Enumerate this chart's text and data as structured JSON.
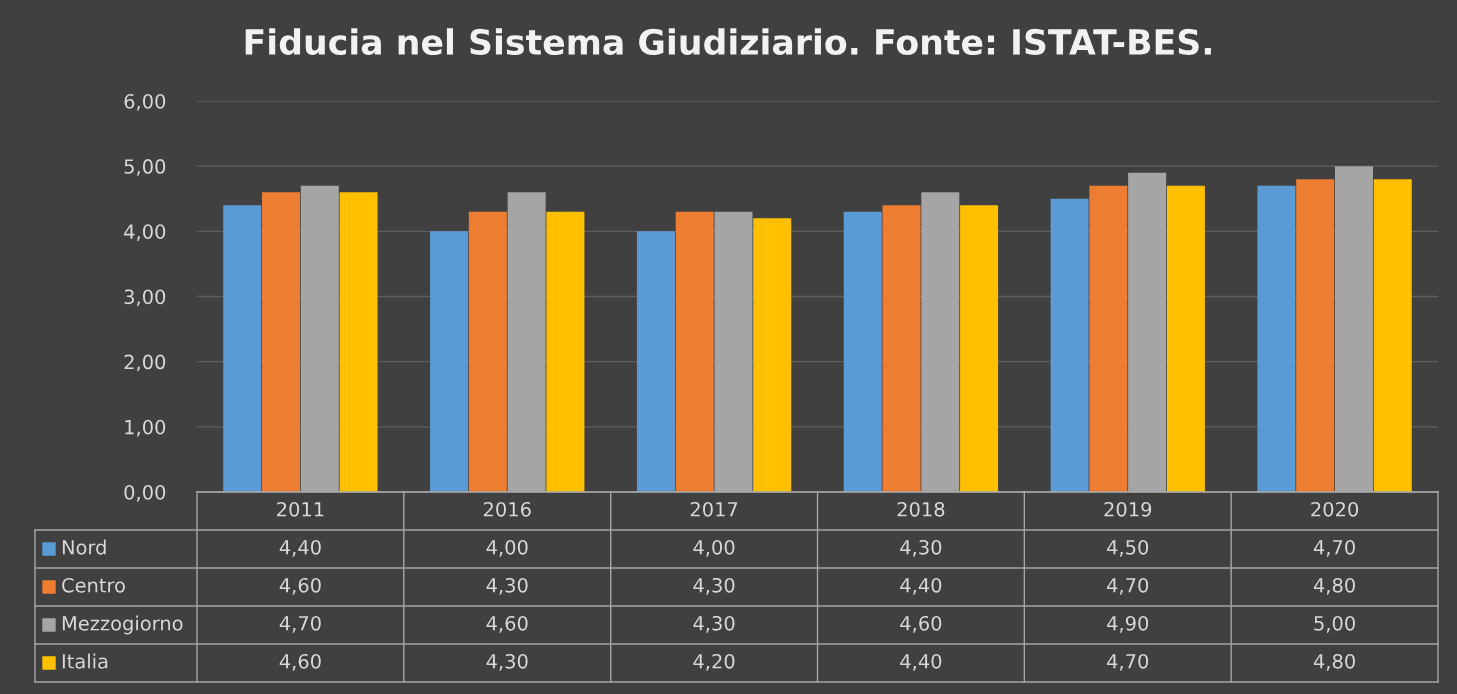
{
  "chart_data": {
    "type": "bar",
    "title": "Fiducia nel Sistema Giudiziario. Fonte: ISTAT-BES.",
    "categories": [
      "2011",
      "2016",
      "2017",
      "2018",
      "2019",
      "2020"
    ],
    "series": [
      {
        "name": "Nord",
        "color": "#5b9bd5",
        "values": [
          4.4,
          4.0,
          4.0,
          4.3,
          4.5,
          4.7
        ],
        "value_labels": [
          "4,40",
          "4,00",
          "4,00",
          "4,30",
          "4,50",
          "4,70"
        ]
      },
      {
        "name": "Centro",
        "color": "#ed7d31",
        "values": [
          4.6,
          4.3,
          4.3,
          4.4,
          4.7,
          4.8
        ],
        "value_labels": [
          "4,60",
          "4,30",
          "4,30",
          "4,40",
          "4,70",
          "4,80"
        ]
      },
      {
        "name": "Mezzogiorno",
        "color": "#a5a5a5",
        "values": [
          4.7,
          4.6,
          4.3,
          4.6,
          4.9,
          5.0
        ],
        "value_labels": [
          "4,70",
          "4,60",
          "4,30",
          "4,60",
          "4,90",
          "5,00"
        ]
      },
      {
        "name": "Italia",
        "color": "#ffc000",
        "values": [
          4.6,
          4.3,
          4.2,
          4.4,
          4.7,
          4.8
        ],
        "value_labels": [
          "4,60",
          "4,30",
          "4,20",
          "4,40",
          "4,70",
          "4,80"
        ]
      }
    ],
    "ylim": [
      0,
      6
    ],
    "yticks": [
      {
        "value": 0,
        "label": "0,00"
      },
      {
        "value": 1,
        "label": "1,00"
      },
      {
        "value": 2,
        "label": "2,00"
      },
      {
        "value": 3,
        "label": "3,00"
      },
      {
        "value": 4,
        "label": "4,00"
      },
      {
        "value": 5,
        "label": "5,00"
      },
      {
        "value": 6,
        "label": "6,00"
      }
    ],
    "grid": "y",
    "legend": "bottom"
  }
}
